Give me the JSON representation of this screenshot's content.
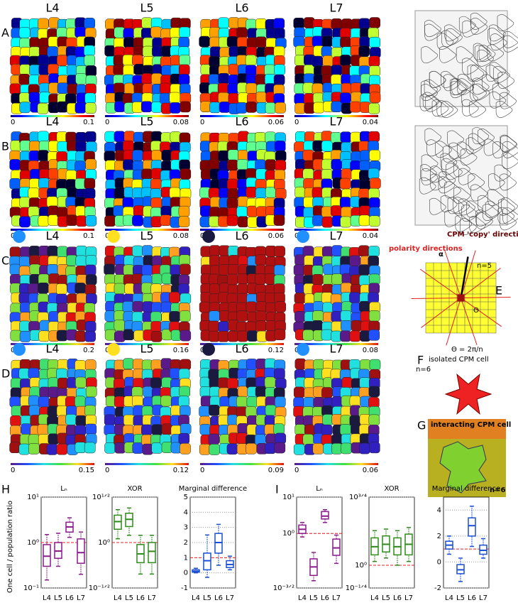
{
  "maps": [
    {
      "label": "A",
      "titles": [
        "L4",
        "L5",
        "L6",
        "L7"
      ],
      "colorbar_ticks": [
        [
          0,
          0.1
        ],
        [
          0,
          0.08
        ],
        [
          0,
          0.06
        ],
        [
          0,
          0.04
        ]
      ]
    },
    {
      "label": "B",
      "titles": [
        "L4",
        "L5",
        "L6",
        "L7"
      ],
      "colorbar_ticks": [
        [
          0,
          0.1
        ],
        [
          0,
          0.08
        ],
        [
          0,
          0.06
        ],
        [
          0,
          0.04
        ]
      ]
    },
    {
      "label": "C",
      "titles": [
        "L4",
        "L5",
        "L6",
        "L7"
      ],
      "colorbar_ticks": [
        [
          0,
          0.2
        ],
        [
          0,
          0.16
        ],
        [
          0,
          0.12
        ],
        [
          0,
          0.08
        ]
      ]
    },
    {
      "label": "D",
      "titles": [
        "L4",
        "L5",
        "L6",
        "L7"
      ],
      "colorbar_ticks": [
        [
          0,
          0.15
        ],
        [
          0,
          0.12
        ],
        [
          0,
          0.09
        ],
        [
          0,
          0.06
        ]
      ]
    }
  ],
  "panel_E": {
    "label": "E",
    "polarity": "polarity directions",
    "copy": "CPM 'copy' direction",
    "alpha": "α",
    "n": "n=5",
    "theta": "Θ",
    "theta_eq": "Θ = 2π/n"
  },
  "panel_F": {
    "label": "F",
    "text": "isolated CPM cell",
    "n": "n=6"
  },
  "panel_G": {
    "label": "G",
    "text": "interacting CPM cell",
    "n": "n=6"
  },
  "y_label": "One cell / population ratio",
  "box_panels": [
    {
      "label": "H",
      "charts": [
        {
          "type": "box",
          "title": "Lₙ",
          "color": "#8b1a8b",
          "log": true,
          "reference": 1,
          "categories": [
            "L4",
            "L5",
            "L6",
            "L7"
          ],
          "ylim": [
            0.1,
            10
          ],
          "yticks": [
            {
              "value": 0.1,
              "label": "10⁻¹"
            },
            {
              "value": 1,
              "label": "10⁰"
            },
            {
              "value": 10,
              "label": "10¹"
            }
          ],
          "boxes": [
            {
              "min": 0.15,
              "q1": 0.3,
              "median": 0.5,
              "q3": 0.9,
              "max": 1.5
            },
            {
              "min": 0.3,
              "q1": 0.45,
              "median": 0.65,
              "q3": 1.0,
              "max": 1.6
            },
            {
              "min": 1.3,
              "q1": 1.7,
              "median": 2.2,
              "q3": 2.8,
              "max": 3.5
            },
            {
              "min": 0.2,
              "q1": 0.35,
              "median": 0.6,
              "q3": 1.2,
              "max": 1.7
            }
          ]
        },
        {
          "type": "box",
          "title": "XOR",
          "color": "#2e8b1a",
          "log": true,
          "reference": 1,
          "categories": [
            "L4",
            "L5",
            "L6",
            "L7"
          ],
          "ylim": [
            0.316,
            3.162
          ],
          "yticks": [
            {
              "value": 0.316,
              "label": "10⁻¹ᐟ²"
            },
            {
              "value": 1,
              "label": "10⁰"
            },
            {
              "value": 3.162,
              "label": "10¹ᐟ²"
            }
          ],
          "boxes": [
            {
              "min": 1.1,
              "q1": 1.4,
              "median": 1.7,
              "q3": 2.0,
              "max": 2.3
            },
            {
              "min": 1.2,
              "q1": 1.5,
              "median": 1.8,
              "q3": 2.1,
              "max": 2.4
            },
            {
              "min": 0.45,
              "q1": 0.6,
              "median": 0.75,
              "q3": 0.95,
              "max": 1.2
            },
            {
              "min": 0.45,
              "q1": 0.6,
              "median": 0.8,
              "q3": 1.0,
              "max": 1.2
            }
          ]
        },
        {
          "type": "box",
          "title": "Marginal difference",
          "color": "#1a4fd6",
          "log": false,
          "reference": 1,
          "categories": [
            "L4",
            "L5",
            "L6",
            "L7"
          ],
          "ylim": [
            -1,
            5
          ],
          "yticks": [
            -1,
            0,
            1,
            2,
            3,
            4,
            5
          ],
          "boxes": [
            {
              "min": 0,
              "q1": 0.05,
              "median": 0.1,
              "q3": 0.2,
              "max": 0.3
            },
            {
              "min": -0.3,
              "q1": 0.2,
              "median": 0.8,
              "q3": 1.3,
              "max": 2.5
            },
            {
              "min": 0.5,
              "q1": 1.3,
              "median": 2.0,
              "q3": 2.6,
              "max": 3.2
            },
            {
              "min": 0.2,
              "q1": 0.35,
              "median": 0.55,
              "q3": 0.8,
              "max": 1.1
            }
          ]
        }
      ]
    },
    {
      "label": "I",
      "charts": [
        {
          "type": "box",
          "title": "Lₙ",
          "color": "#8b1a8b",
          "log": true,
          "reference": 1,
          "categories": [
            "L4",
            "L5",
            "L6",
            "L7"
          ],
          "ylim": [
            0.0316,
            10
          ],
          "yticks": [
            {
              "value": 0.0316,
              "label": "10⁻³ᐟ²"
            },
            {
              "value": 1,
              "label": "10⁰"
            },
            {
              "value": 10,
              "label": "10¹"
            }
          ],
          "boxes": [
            {
              "min": 0.8,
              "q1": 1.0,
              "median": 1.3,
              "q3": 1.7,
              "max": 2.0
            },
            {
              "min": 0.05,
              "q1": 0.07,
              "median": 0.12,
              "q3": 0.2,
              "max": 0.3
            },
            {
              "min": 2.0,
              "q1": 2.5,
              "median": 3.0,
              "q3": 4.0,
              "max": 4.5
            },
            {
              "min": 0.15,
              "q1": 0.25,
              "median": 0.4,
              "q3": 0.7,
              "max": 0.9
            }
          ]
        },
        {
          "type": "box",
          "title": "XOR",
          "color": "#2e8b1a",
          "log": true,
          "reference": 1,
          "categories": [
            "L4",
            "L5",
            "L6",
            "L7"
          ],
          "ylim": [
            0.562,
            5.62
          ],
          "yticks": [
            {
              "value": 0.562,
              "label": "10⁻¹ᐟ⁴"
            },
            {
              "value": 1,
              "label": "10⁰"
            },
            {
              "value": 5.62,
              "label": "10³ᐟ⁴"
            }
          ],
          "boxes": [
            {
              "min": 1.1,
              "q1": 1.3,
              "median": 1.6,
              "q3": 2.0,
              "max": 2.4
            },
            {
              "min": 1.2,
              "q1": 1.4,
              "median": 1.7,
              "q3": 2.1,
              "max": 2.5
            },
            {
              "min": 1.0,
              "q1": 1.3,
              "median": 1.6,
              "q3": 2.0,
              "max": 2.4
            },
            {
              "min": 1.1,
              "q1": 1.3,
              "median": 1.7,
              "q3": 2.2,
              "max": 2.6
            }
          ]
        },
        {
          "type": "box",
          "title": "Marginal difference",
          "color": "#1a4fd6",
          "log": false,
          "reference": 1,
          "categories": [
            "L4",
            "L5",
            "L6",
            "L7"
          ],
          "ylim": [
            -2,
            5
          ],
          "yticks": [
            -2,
            0,
            2,
            4
          ],
          "boxes": [
            {
              "min": 0.6,
              "q1": 1.0,
              "median": 1.3,
              "q3": 1.6,
              "max": 2.0
            },
            {
              "min": -1.5,
              "q1": -0.9,
              "median": -0.6,
              "q3": -0.2,
              "max": 0.3
            },
            {
              "min": 1.2,
              "q1": 2.0,
              "median": 2.8,
              "q3": 3.4,
              "max": 4.3
            },
            {
              "min": 0.3,
              "q1": 0.6,
              "median": 0.9,
              "q3": 1.3,
              "max": 1.8
            }
          ]
        }
      ]
    }
  ]
}
